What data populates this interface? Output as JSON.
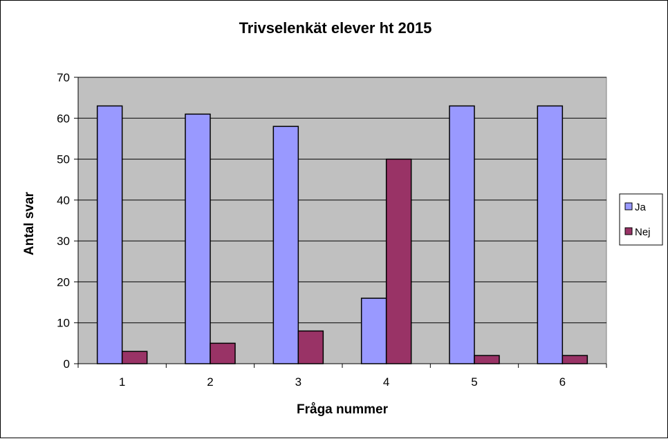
{
  "chart_data": {
    "type": "bar",
    "title": "Trivselenkät elever ht 2015",
    "xlabel": "Fråga nummer",
    "ylabel": "Antal svar",
    "categories": [
      "1",
      "2",
      "3",
      "4",
      "5",
      "6"
    ],
    "series": [
      {
        "name": "Ja",
        "values": [
          63,
          61,
          58,
          16,
          63,
          63
        ],
        "color": "#9999ff"
      },
      {
        "name": "Nej",
        "values": [
          3,
          5,
          8,
          50,
          2,
          2
        ],
        "color": "#993366"
      }
    ],
    "ylim": [
      0,
      70
    ],
    "yticks": [
      0,
      10,
      20,
      30,
      40,
      50,
      60,
      70
    ],
    "grid": true,
    "plot_background": "#c0c0c0",
    "legend_position": "right"
  }
}
